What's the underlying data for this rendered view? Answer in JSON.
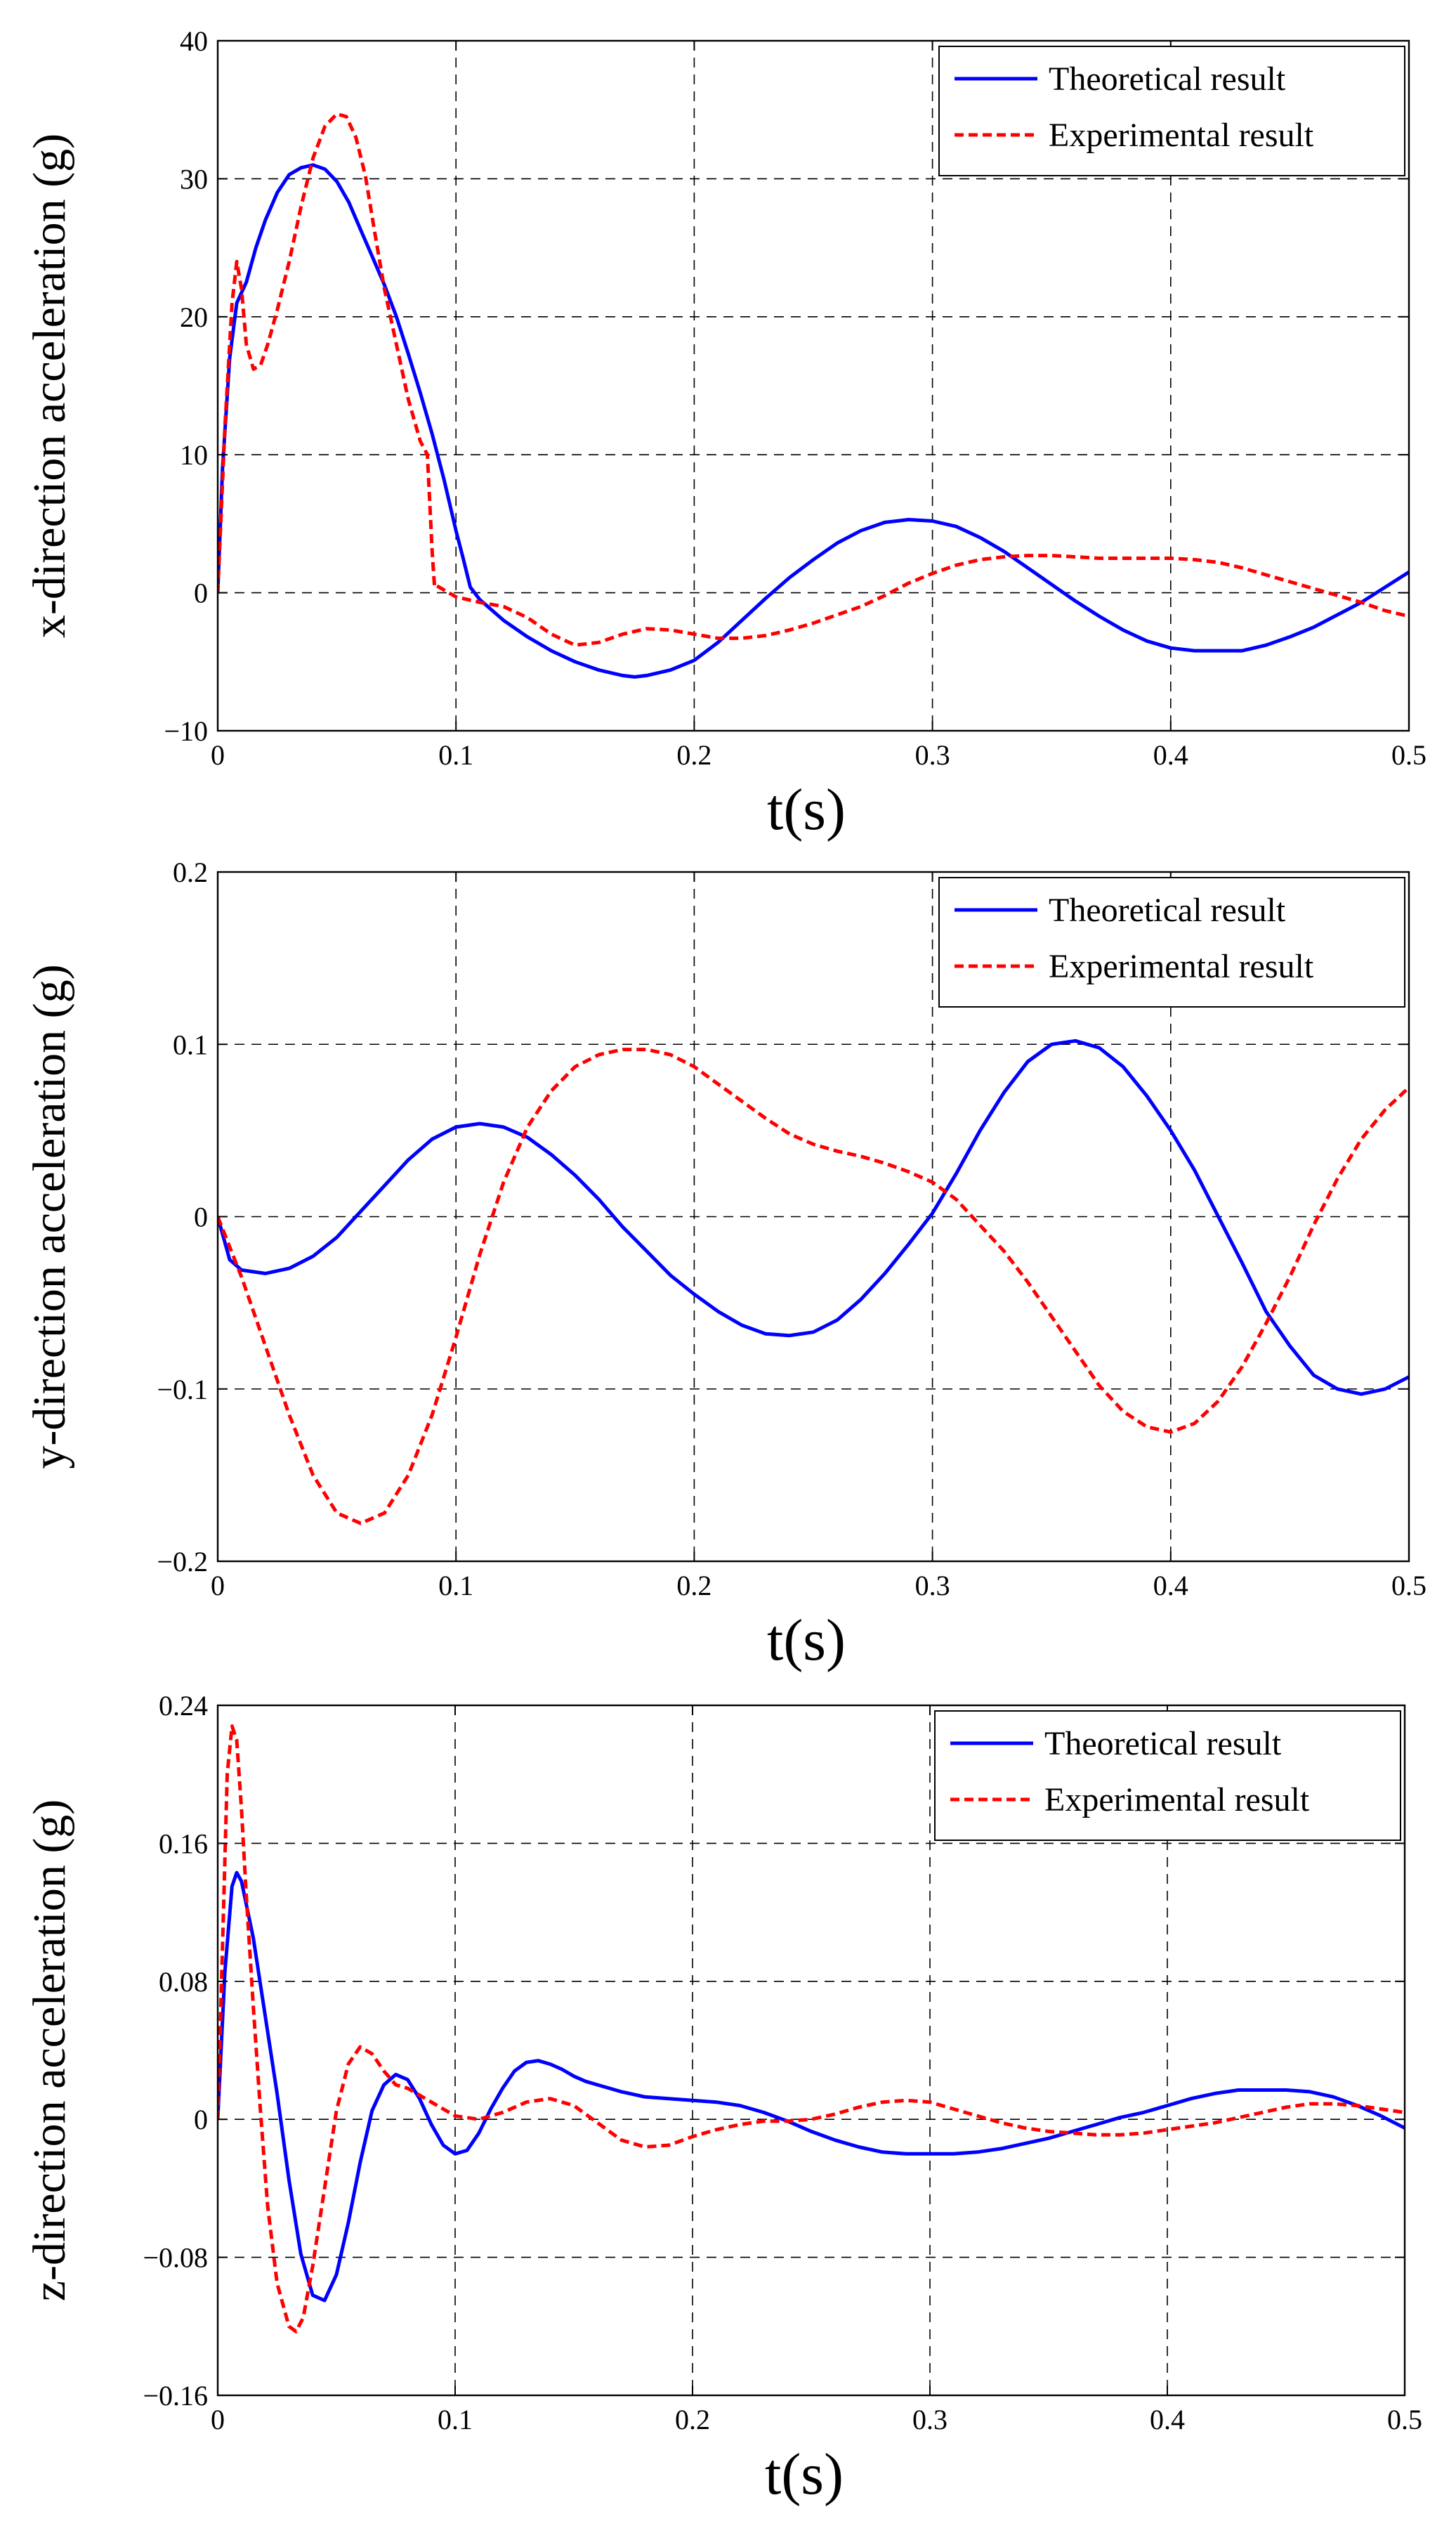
{
  "chart_data": [
    {
      "type": "line",
      "ylabel": "x-direction acceleration (g)",
      "xlabel": "t(s)",
      "xlim": [
        0,
        0.5
      ],
      "ylim": [
        -10,
        40
      ],
      "xticks": [
        0,
        0.1,
        0.2,
        0.3,
        0.4,
        0.5
      ],
      "xtick_labels": [
        "0",
        "0.1",
        "0.2",
        "0.3",
        "0.4",
        "0.5"
      ],
      "yticks": [
        -10,
        0,
        10,
        20,
        30,
        40
      ],
      "ytick_labels": [
        "−10",
        "0",
        "10",
        "20",
        "30",
        "40"
      ],
      "grid": true,
      "legend_position": "top-right",
      "series": [
        {
          "name": "Theoretical result",
          "style": "solid",
          "color": "#0000ff",
          "x": [
            0,
            0.002,
            0.005,
            0.008,
            0.012,
            0.016,
            0.02,
            0.025,
            0.03,
            0.035,
            0.04,
            0.045,
            0.05,
            0.055,
            0.06,
            0.065,
            0.07,
            0.075,
            0.08,
            0.085,
            0.09,
            0.095,
            0.1,
            0.103,
            0.106,
            0.11,
            0.12,
            0.13,
            0.14,
            0.15,
            0.16,
            0.17,
            0.175,
            0.18,
            0.19,
            0.2,
            0.21,
            0.22,
            0.23,
            0.24,
            0.25,
            0.26,
            0.27,
            0.28,
            0.29,
            0.3,
            0.31,
            0.32,
            0.33,
            0.34,
            0.35,
            0.36,
            0.37,
            0.38,
            0.39,
            0.4,
            0.41,
            0.42,
            0.43,
            0.44,
            0.45,
            0.46,
            0.47,
            0.48,
            0.49,
            0.5
          ],
          "y": [
            0,
            9,
            17,
            21,
            22.5,
            25,
            27,
            29,
            30.3,
            30.8,
            31,
            30.7,
            29.8,
            28.3,
            26.3,
            24.3,
            22.3,
            20,
            17.3,
            14.5,
            11.5,
            8.2,
            4.5,
            2.5,
            0.4,
            -0.5,
            -2,
            -3.2,
            -4.2,
            -5,
            -5.6,
            -6,
            -6.1,
            -6,
            -5.6,
            -4.9,
            -3.6,
            -2,
            -0.4,
            1.1,
            2.4,
            3.6,
            4.5,
            5.1,
            5.3,
            5.2,
            4.8,
            4,
            3,
            1.8,
            0.6,
            -0.6,
            -1.7,
            -2.7,
            -3.5,
            -4,
            -4.2,
            -4.2,
            -4.2,
            -3.8,
            -3.2,
            -2.5,
            -1.6,
            -0.7,
            0.4,
            1.5
          ]
        },
        {
          "name": "Experimental result",
          "style": "dashed",
          "color": "#ff0000",
          "x": [
            0,
            0.003,
            0.006,
            0.008,
            0.01,
            0.012,
            0.015,
            0.018,
            0.021,
            0.025,
            0.03,
            0.035,
            0.04,
            0.045,
            0.05,
            0.054,
            0.058,
            0.062,
            0.066,
            0.07,
            0.075,
            0.08,
            0.085,
            0.088,
            0.09,
            0.091,
            0.092,
            0.1,
            0.11,
            0.12,
            0.13,
            0.14,
            0.15,
            0.16,
            0.17,
            0.18,
            0.19,
            0.2,
            0.21,
            0.22,
            0.23,
            0.24,
            0.25,
            0.26,
            0.27,
            0.28,
            0.29,
            0.3,
            0.31,
            0.32,
            0.33,
            0.34,
            0.35,
            0.36,
            0.37,
            0.38,
            0.39,
            0.4,
            0.41,
            0.42,
            0.43,
            0.44,
            0.45,
            0.46,
            0.47,
            0.48,
            0.49,
            0.5
          ],
          "y": [
            0,
            12,
            21,
            24,
            22,
            18,
            16.2,
            16.5,
            18,
            20.5,
            24,
            28,
            31.5,
            33.8,
            34.7,
            34.5,
            33,
            30.2,
            26,
            22,
            18,
            14,
            11,
            10,
            3,
            0.4,
            0.5,
            -0.3,
            -0.7,
            -1,
            -1.8,
            -3,
            -3.8,
            -3.6,
            -3,
            -2.6,
            -2.7,
            -3,
            -3.3,
            -3.3,
            -3.1,
            -2.7,
            -2.2,
            -1.6,
            -1,
            -0.2,
            0.7,
            1.4,
            2,
            2.4,
            2.6,
            2.7,
            2.7,
            2.6,
            2.5,
            2.5,
            2.5,
            2.5,
            2.4,
            2.2,
            1.8,
            1.3,
            0.8,
            0.3,
            -0.2,
            -0.7,
            -1.3,
            -1.7
          ]
        }
      ]
    },
    {
      "type": "line",
      "ylabel": "y-direction acceleration (g)",
      "xlabel": "t(s)",
      "xlim": [
        0,
        0.5
      ],
      "ylim": [
        -0.2,
        0.2
      ],
      "xticks": [
        0,
        0.1,
        0.2,
        0.3,
        0.4,
        0.5
      ],
      "xtick_labels": [
        "0",
        "0.1",
        "0.2",
        "0.3",
        "0.4",
        "0.5"
      ],
      "yticks": [
        -0.2,
        -0.1,
        0,
        0.1,
        0.2
      ],
      "ytick_labels": [
        "−0.2",
        "−0.1",
        "0",
        "0.1",
        "0.2"
      ],
      "grid": true,
      "legend_position": "top-right",
      "series": [
        {
          "name": "Theoretical result",
          "style": "solid",
          "color": "#0000ff",
          "x": [
            0,
            0.005,
            0.01,
            0.02,
            0.03,
            0.04,
            0.05,
            0.06,
            0.07,
            0.08,
            0.09,
            0.1,
            0.11,
            0.12,
            0.13,
            0.14,
            0.15,
            0.16,
            0.17,
            0.18,
            0.19,
            0.2,
            0.21,
            0.22,
            0.23,
            0.24,
            0.25,
            0.26,
            0.27,
            0.28,
            0.29,
            0.3,
            0.31,
            0.32,
            0.33,
            0.34,
            0.35,
            0.36,
            0.37,
            0.38,
            0.39,
            0.4,
            0.41,
            0.42,
            0.43,
            0.44,
            0.45,
            0.46,
            0.47,
            0.48,
            0.49,
            0.5
          ],
          "y": [
            0,
            -0.025,
            -0.031,
            -0.033,
            -0.03,
            -0.023,
            -0.012,
            0.003,
            0.018,
            0.033,
            0.045,
            0.052,
            0.054,
            0.052,
            0.046,
            0.036,
            0.024,
            0.01,
            -0.006,
            -0.02,
            -0.034,
            -0.045,
            -0.055,
            -0.063,
            -0.068,
            -0.069,
            -0.067,
            -0.06,
            -0.048,
            -0.033,
            -0.016,
            0.002,
            0.025,
            0.05,
            0.072,
            0.09,
            0.1,
            0.102,
            0.098,
            0.087,
            0.07,
            0.05,
            0.027,
            0,
            -0.027,
            -0.055,
            -0.075,
            -0.092,
            -0.1,
            -0.103,
            -0.1,
            -0.093
          ]
        },
        {
          "name": "Experimental result",
          "style": "dashed",
          "color": "#ff0000",
          "x": [
            0,
            0.01,
            0.02,
            0.03,
            0.04,
            0.05,
            0.06,
            0.07,
            0.08,
            0.09,
            0.1,
            0.11,
            0.12,
            0.13,
            0.14,
            0.15,
            0.16,
            0.17,
            0.18,
            0.19,
            0.2,
            0.21,
            0.22,
            0.23,
            0.24,
            0.25,
            0.26,
            0.27,
            0.28,
            0.29,
            0.3,
            0.31,
            0.32,
            0.33,
            0.34,
            0.35,
            0.36,
            0.37,
            0.38,
            0.39,
            0.4,
            0.41,
            0.42,
            0.43,
            0.44,
            0.45,
            0.46,
            0.47,
            0.48,
            0.49,
            0.5
          ],
          "y": [
            0,
            -0.035,
            -0.075,
            -0.115,
            -0.15,
            -0.172,
            -0.178,
            -0.172,
            -0.15,
            -0.115,
            -0.07,
            -0.022,
            0.02,
            0.052,
            0.073,
            0.087,
            0.094,
            0.097,
            0.097,
            0.094,
            0.087,
            0.077,
            0.067,
            0.057,
            0.048,
            0.042,
            0.038,
            0.035,
            0.031,
            0.026,
            0.02,
            0.01,
            -0.005,
            -0.02,
            -0.038,
            -0.058,
            -0.078,
            -0.098,
            -0.113,
            -0.122,
            -0.125,
            -0.12,
            -0.107,
            -0.087,
            -0.062,
            -0.035,
            -0.005,
            0.022,
            0.045,
            0.062,
            0.075
          ]
        }
      ]
    },
    {
      "type": "line",
      "ylabel": "z-direction acceleration (g)",
      "xlabel": "t(s)",
      "xlim": [
        0,
        0.5
      ],
      "ylim": [
        -0.16,
        0.24
      ],
      "xticks": [
        0,
        0.1,
        0.2,
        0.3,
        0.4,
        0.5
      ],
      "xtick_labels": [
        "0",
        "0.1",
        "0.2",
        "0.3",
        "0.4",
        "0.5"
      ],
      "yticks": [
        -0.16,
        -0.08,
        0,
        0.08,
        0.16,
        0.24
      ],
      "ytick_labels": [
        "−0.16",
        "−0.08",
        "0",
        "0.08",
        "0.16",
        "0.24"
      ],
      "grid": true,
      "legend_position": "top-right",
      "series": [
        {
          "name": "Theoretical result",
          "style": "solid",
          "color": "#0000ff",
          "x": [
            0,
            0.003,
            0.006,
            0.008,
            0.01,
            0.015,
            0.02,
            0.025,
            0.03,
            0.035,
            0.04,
            0.045,
            0.05,
            0.055,
            0.06,
            0.065,
            0.07,
            0.075,
            0.08,
            0.085,
            0.09,
            0.095,
            0.1,
            0.105,
            0.11,
            0.115,
            0.12,
            0.125,
            0.13,
            0.135,
            0.14,
            0.145,
            0.15,
            0.155,
            0.16,
            0.165,
            0.17,
            0.18,
            0.19,
            0.2,
            0.21,
            0.22,
            0.23,
            0.24,
            0.25,
            0.26,
            0.27,
            0.28,
            0.29,
            0.3,
            0.31,
            0.32,
            0.33,
            0.34,
            0.35,
            0.36,
            0.37,
            0.38,
            0.39,
            0.4,
            0.41,
            0.42,
            0.43,
            0.44,
            0.45,
            0.46,
            0.47,
            0.48,
            0.49,
            0.5
          ],
          "y": [
            0,
            0.085,
            0.135,
            0.143,
            0.138,
            0.105,
            0.06,
            0.015,
            -0.035,
            -0.078,
            -0.102,
            -0.105,
            -0.09,
            -0.06,
            -0.025,
            0.005,
            0.02,
            0.026,
            0.023,
            0.012,
            -0.003,
            -0.015,
            -0.02,
            -0.018,
            -0.008,
            0.006,
            0.018,
            0.028,
            0.033,
            0.034,
            0.032,
            0.029,
            0.025,
            0.022,
            0.02,
            0.018,
            0.016,
            0.013,
            0.012,
            0.011,
            0.01,
            0.008,
            0.004,
            -0.001,
            -0.007,
            -0.012,
            -0.016,
            -0.019,
            -0.02,
            -0.02,
            -0.02,
            -0.019,
            -0.017,
            -0.014,
            -0.011,
            -0.007,
            -0.003,
            0.001,
            0.004,
            0.008,
            0.012,
            0.015,
            0.017,
            0.017,
            0.017,
            0.016,
            0.013,
            0.008,
            0.002,
            -0.005
          ]
        },
        {
          "name": "Experimental result",
          "style": "dashed",
          "color": "#ff0000",
          "x": [
            0,
            0.002,
            0.004,
            0.006,
            0.008,
            0.01,
            0.012,
            0.015,
            0.018,
            0.021,
            0.025,
            0.03,
            0.033,
            0.036,
            0.04,
            0.045,
            0.05,
            0.055,
            0.06,
            0.065,
            0.07,
            0.075,
            0.08,
            0.09,
            0.1,
            0.11,
            0.12,
            0.13,
            0.14,
            0.15,
            0.16,
            0.17,
            0.18,
            0.19,
            0.2,
            0.21,
            0.22,
            0.23,
            0.24,
            0.25,
            0.26,
            0.27,
            0.28,
            0.29,
            0.3,
            0.31,
            0.32,
            0.33,
            0.34,
            0.35,
            0.36,
            0.37,
            0.38,
            0.39,
            0.4,
            0.41,
            0.42,
            0.43,
            0.44,
            0.45,
            0.46,
            0.47,
            0.48,
            0.49,
            0.5
          ],
          "y": [
            0,
            0.1,
            0.2,
            0.228,
            0.22,
            0.18,
            0.13,
            0.065,
            0.005,
            -0.05,
            -0.095,
            -0.12,
            -0.123,
            -0.115,
            -0.085,
            -0.04,
            0.005,
            0.032,
            0.042,
            0.038,
            0.028,
            0.02,
            0.018,
            0.01,
            0.002,
            0,
            0.004,
            0.01,
            0.012,
            0.008,
            -0.002,
            -0.012,
            -0.016,
            -0.015,
            -0.01,
            -0.006,
            -0.003,
            -0.001,
            -0.001,
            0,
            0.003,
            0.007,
            0.01,
            0.011,
            0.01,
            0.006,
            0.002,
            -0.002,
            -0.005,
            -0.007,
            -0.008,
            -0.009,
            -0.009,
            -0.008,
            -0.006,
            -0.004,
            -0.002,
            0.001,
            0.004,
            0.007,
            0.009,
            0.009,
            0.008,
            0.006,
            0.004
          ]
        }
      ]
    }
  ]
}
